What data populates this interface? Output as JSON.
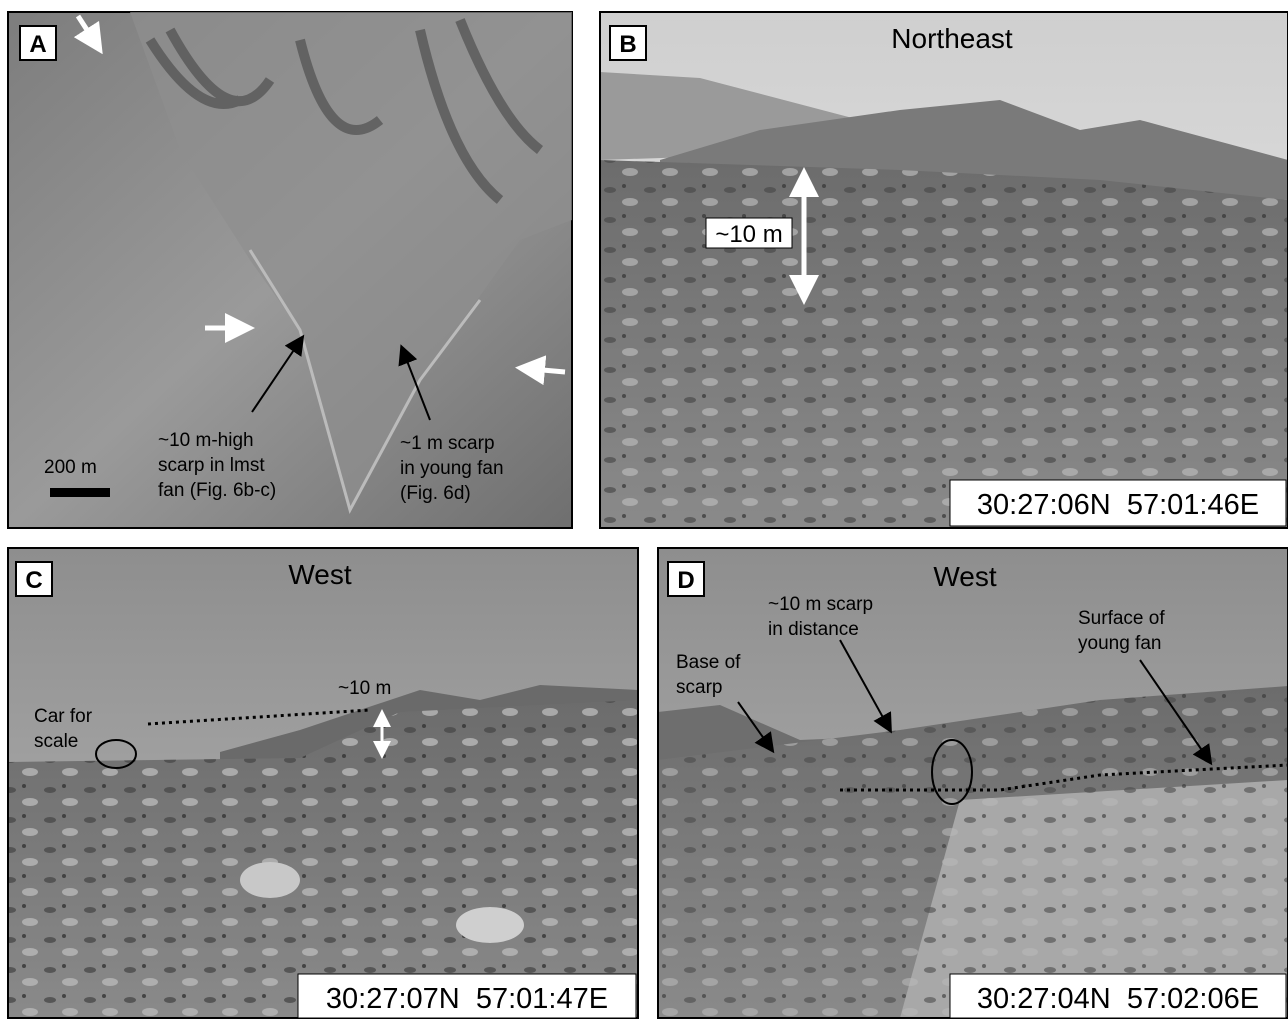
{
  "panels": [
    {
      "label": "A",
      "scale": "200 m",
      "annotations": [
        {
          "lines": [
            "~10 m-high",
            "scarp in lmst",
            "fan (Fig. 6b-c)"
          ]
        },
        {
          "lines": [
            "~1 m scarp",
            "in young fan",
            "(Fig. 6d)"
          ]
        }
      ]
    },
    {
      "label": "B",
      "title": "Northeast",
      "annotations": [
        {
          "lines": [
            "~10 m"
          ]
        }
      ],
      "coords": "30:27:06N  57:01:46E"
    },
    {
      "label": "C",
      "title": "West",
      "annotations": [
        {
          "lines": [
            "~10 m"
          ]
        },
        {
          "lines": [
            "Car for",
            "scale"
          ]
        }
      ],
      "coords": "30:27:07N  57:01:47E"
    },
    {
      "label": "D",
      "title": "West",
      "annotations": [
        {
          "lines": [
            "~10 m scarp",
            "in distance"
          ]
        },
        {
          "lines": [
            "Base of",
            "scarp"
          ]
        },
        {
          "lines": [
            "Surface of",
            "young fan"
          ]
        }
      ],
      "coords": "30:27:04N  57:02:06E"
    }
  ]
}
